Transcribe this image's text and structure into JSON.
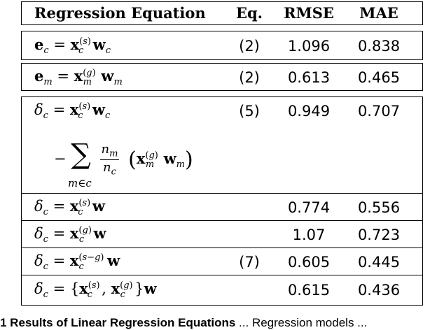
{
  "header": {
    "col_equation": "Regression Equation",
    "col_eq": "Eq.",
    "col_rmse": "RMSE",
    "col_mae": "MAE"
  },
  "rows": [
    {
      "equation": "e_c = x_c^(s) w_c",
      "eq": "(2)",
      "rmse": "1.096",
      "mae": "0.838"
    },
    {
      "equation": "e_m = x_m^(g) w_m",
      "eq": "(2)",
      "rmse": "0.613",
      "mae": "0.465"
    },
    {
      "equation": "δ_c = x_c^(s) w_c − Σ_{m∈c} (n_m/n_c) (x_m^(g) w_m)",
      "eq": "(5)",
      "rmse": "0.949",
      "mae": "0.707"
    },
    {
      "equation": "δ_c = x_c^(s) w",
      "eq": "",
      "rmse": "0.774",
      "mae": "0.556"
    },
    {
      "equation": "δ_c = x_c^(g) w",
      "eq": "",
      "rmse": "1.07",
      "mae": "0.723"
    },
    {
      "equation": "δ_c = x_c^(s−g) w",
      "eq": "(7)",
      "rmse": "0.605",
      "mae": "0.445"
    },
    {
      "equation": "δ_c = {x_c^(s), x_c^(g)} w",
      "eq": "",
      "rmse": "0.615",
      "mae": "0.436"
    }
  ],
  "caption": {
    "bold": "1 Results of Linear Regression Equations",
    "rest": "... Regression models ..."
  }
}
